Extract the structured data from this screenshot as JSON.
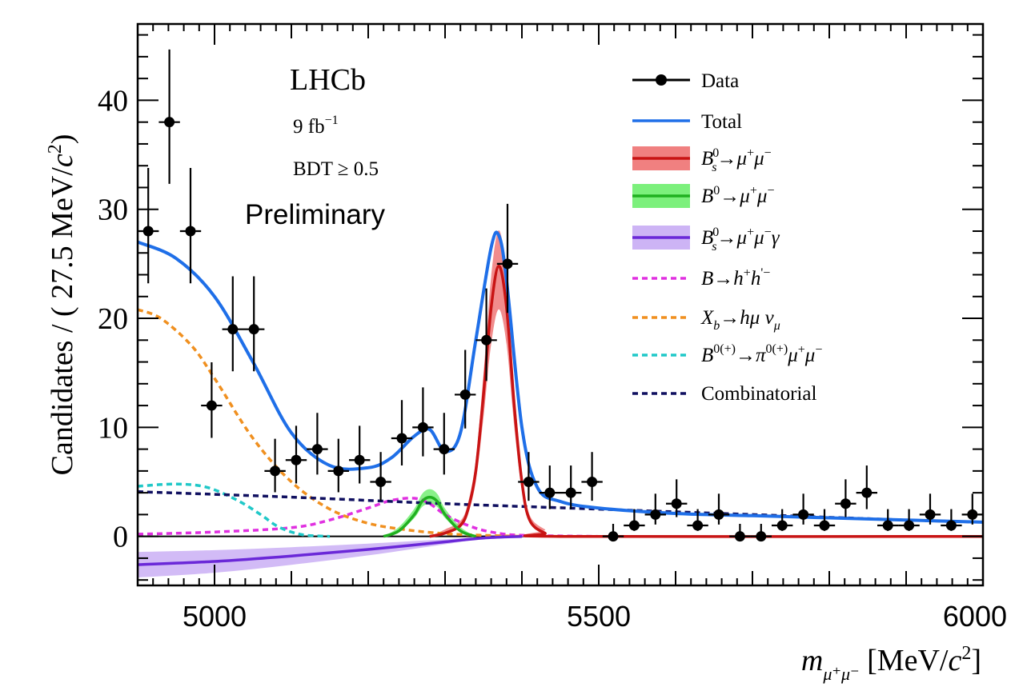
{
  "chart_data": {
    "type": "scatter",
    "title": "LHCb",
    "annotations": {
      "experiment": "LHCb",
      "lumi_value": "9 fb",
      "lumi_exp": "−1",
      "cut": "BDT ≥ 0.5",
      "status": "Preliminary"
    },
    "ylabel": {
      "prefix": "Candidates / ( 27.5 MeV/",
      "c": "c",
      "exp": "2",
      "suffix": ")"
    },
    "xlabel": {
      "m": "m",
      "sub": "μ⁺μ⁻",
      "units": " [MeV/",
      "c": "c",
      "exp": "2",
      "close": "]"
    },
    "xlim": [
      4900,
      6000
    ],
    "ylim": [
      -4.5,
      47
    ],
    "xticks": [
      5000,
      5500,
      6000
    ],
    "yticks": [
      0,
      10,
      20,
      30,
      40
    ],
    "bin_width": 27.5,
    "data": {
      "name": "Data",
      "x": [
        4913.75,
        4941.25,
        4968.75,
        4996.25,
        5023.75,
        5051.25,
        5078.75,
        5106.25,
        5133.75,
        5161.25,
        5188.75,
        5216.25,
        5243.75,
        5271.25,
        5298.75,
        5326.25,
        5353.75,
        5381.25,
        5408.75,
        5436.25,
        5463.75,
        5491.25,
        5518.75,
        5546.25,
        5573.75,
        5601.25,
        5628.75,
        5656.25,
        5683.75,
        5711.25,
        5738.75,
        5766.25,
        5793.75,
        5821.25,
        5848.75,
        5876.25,
        5903.75,
        5931.25,
        5958.75,
        5986.25
      ],
      "y": [
        28,
        38,
        28,
        12,
        19,
        19,
        6,
        7,
        8,
        6,
        7,
        5,
        9,
        10,
        8,
        13,
        18,
        25,
        5,
        4,
        4,
        5,
        0,
        1,
        2,
        3,
        1,
        2,
        0,
        0,
        1,
        2,
        1,
        3,
        4,
        1,
        1,
        2,
        1,
        2
      ]
    },
    "series": [
      {
        "name": "Total",
        "color": "#1f6fe8",
        "style": "solid",
        "x": [
          4900,
          4950,
          5000,
          5050,
          5100,
          5150,
          5200,
          5230,
          5260,
          5280,
          5300,
          5320,
          5340,
          5360,
          5370,
          5380,
          5400,
          5420,
          5450,
          5500,
          5600,
          5700,
          5800,
          5900,
          6000
        ],
        "y": [
          27,
          25.5,
          22,
          16,
          9.5,
          6.5,
          6.3,
          7.2,
          9.2,
          9.8,
          7.8,
          9.5,
          18,
          26.5,
          27.6,
          23.5,
          10,
          4.5,
          3.2,
          2.6,
          2.1,
          1.9,
          1.7,
          1.5,
          1.3
        ]
      },
      {
        "name": "B_s^0 → μ⁺μ⁻",
        "color": "#c81414",
        "band_color": "#f08080",
        "style": "solid",
        "x": [
          5280,
          5300,
          5320,
          5330,
          5340,
          5350,
          5360,
          5370,
          5380,
          5390,
          5400,
          5410,
          5430,
          5450,
          6000
        ],
        "y": [
          0,
          0.3,
          1,
          2.5,
          6,
          13,
          21,
          24.8,
          21,
          12,
          5,
          1.5,
          0.3,
          0,
          0
        ]
      },
      {
        "name": "B^0 → μ⁺μ⁻",
        "color": "#20b020",
        "band_color": "#7cf07c",
        "style": "solid",
        "x": [
          5220,
          5240,
          5260,
          5270,
          5280,
          5290,
          5300,
          5320,
          5340
        ],
        "y": [
          0,
          0.5,
          2,
          3.2,
          3.6,
          3.2,
          2,
          0.5,
          0
        ]
      },
      {
        "name": "B_s^0 → μ⁺μ⁻γ",
        "color": "#6a28d8",
        "band_color": "#cdb4f5",
        "style": "solid",
        "x": [
          4900,
          5000,
          5100,
          5200,
          5300,
          5350,
          5400
        ],
        "y": [
          -2.6,
          -2.3,
          -1.8,
          -1.2,
          -0.5,
          -0.15,
          0
        ]
      },
      {
        "name": "B → h⁺h'⁻",
        "color": "#e030e0",
        "style": "dashed",
        "x": [
          4900,
          5000,
          5100,
          5150,
          5200,
          5230,
          5260,
          5280,
          5300,
          5330,
          5360,
          5400,
          5500
        ],
        "y": [
          0.2,
          0.4,
          0.8,
          1.5,
          2.6,
          3.3,
          3.5,
          3,
          2,
          1,
          0.4,
          0.1,
          0
        ]
      },
      {
        "name": "X_b → hμν_μ",
        "color": "#f09020",
        "style": "dashed",
        "x": [
          4900,
          4930,
          4970,
          5000,
          5050,
          5100,
          5150,
          5200,
          5250,
          5300,
          5350,
          5400
        ],
        "y": [
          20.8,
          20,
          17.5,
          14.5,
          9,
          5,
          2.5,
          1.2,
          0.6,
          0.25,
          0.1,
          0
        ]
      },
      {
        "name": "B^{0(+)} → π^{0(+)}μ⁺μ⁻",
        "color": "#20c8c8",
        "style": "dashed",
        "x": [
          4900,
          4950,
          4990,
          5030,
          5060,
          5080,
          5100,
          5120,
          5150
        ],
        "y": [
          4.6,
          4.8,
          4.5,
          3.3,
          2,
          1,
          0.4,
          0.1,
          0
        ]
      },
      {
        "name": "Combinatorial",
        "color": "#101060",
        "style": "dashed",
        "x": [
          4900,
          5100,
          5300,
          5500,
          5700,
          5900,
          6000
        ],
        "y": [
          4.1,
          3.6,
          3.0,
          2.5,
          2.0,
          1.5,
          1.3
        ]
      }
    ],
    "legend": {
      "position": "top-right",
      "entries": [
        {
          "key": "data",
          "text": "Data"
        },
        {
          "key": "total",
          "text": "Total"
        },
        {
          "key": "bs",
          "text": "B_s^0→μ⁺μ⁻"
        },
        {
          "key": "bd",
          "text": "B^0→μ⁺μ⁻"
        },
        {
          "key": "bsgamma",
          "text": "B_s^0→μ⁺μ⁻γ"
        },
        {
          "key": "bhh",
          "text": "B→h⁺h'⁻"
        },
        {
          "key": "xb",
          "text": "X_b→hμν_μ"
        },
        {
          "key": "bpimumu",
          "text": "B^{0(+)}→π^{0(+)}μ⁺μ⁻"
        },
        {
          "key": "comb",
          "text": "Combinatorial"
        }
      ]
    }
  }
}
